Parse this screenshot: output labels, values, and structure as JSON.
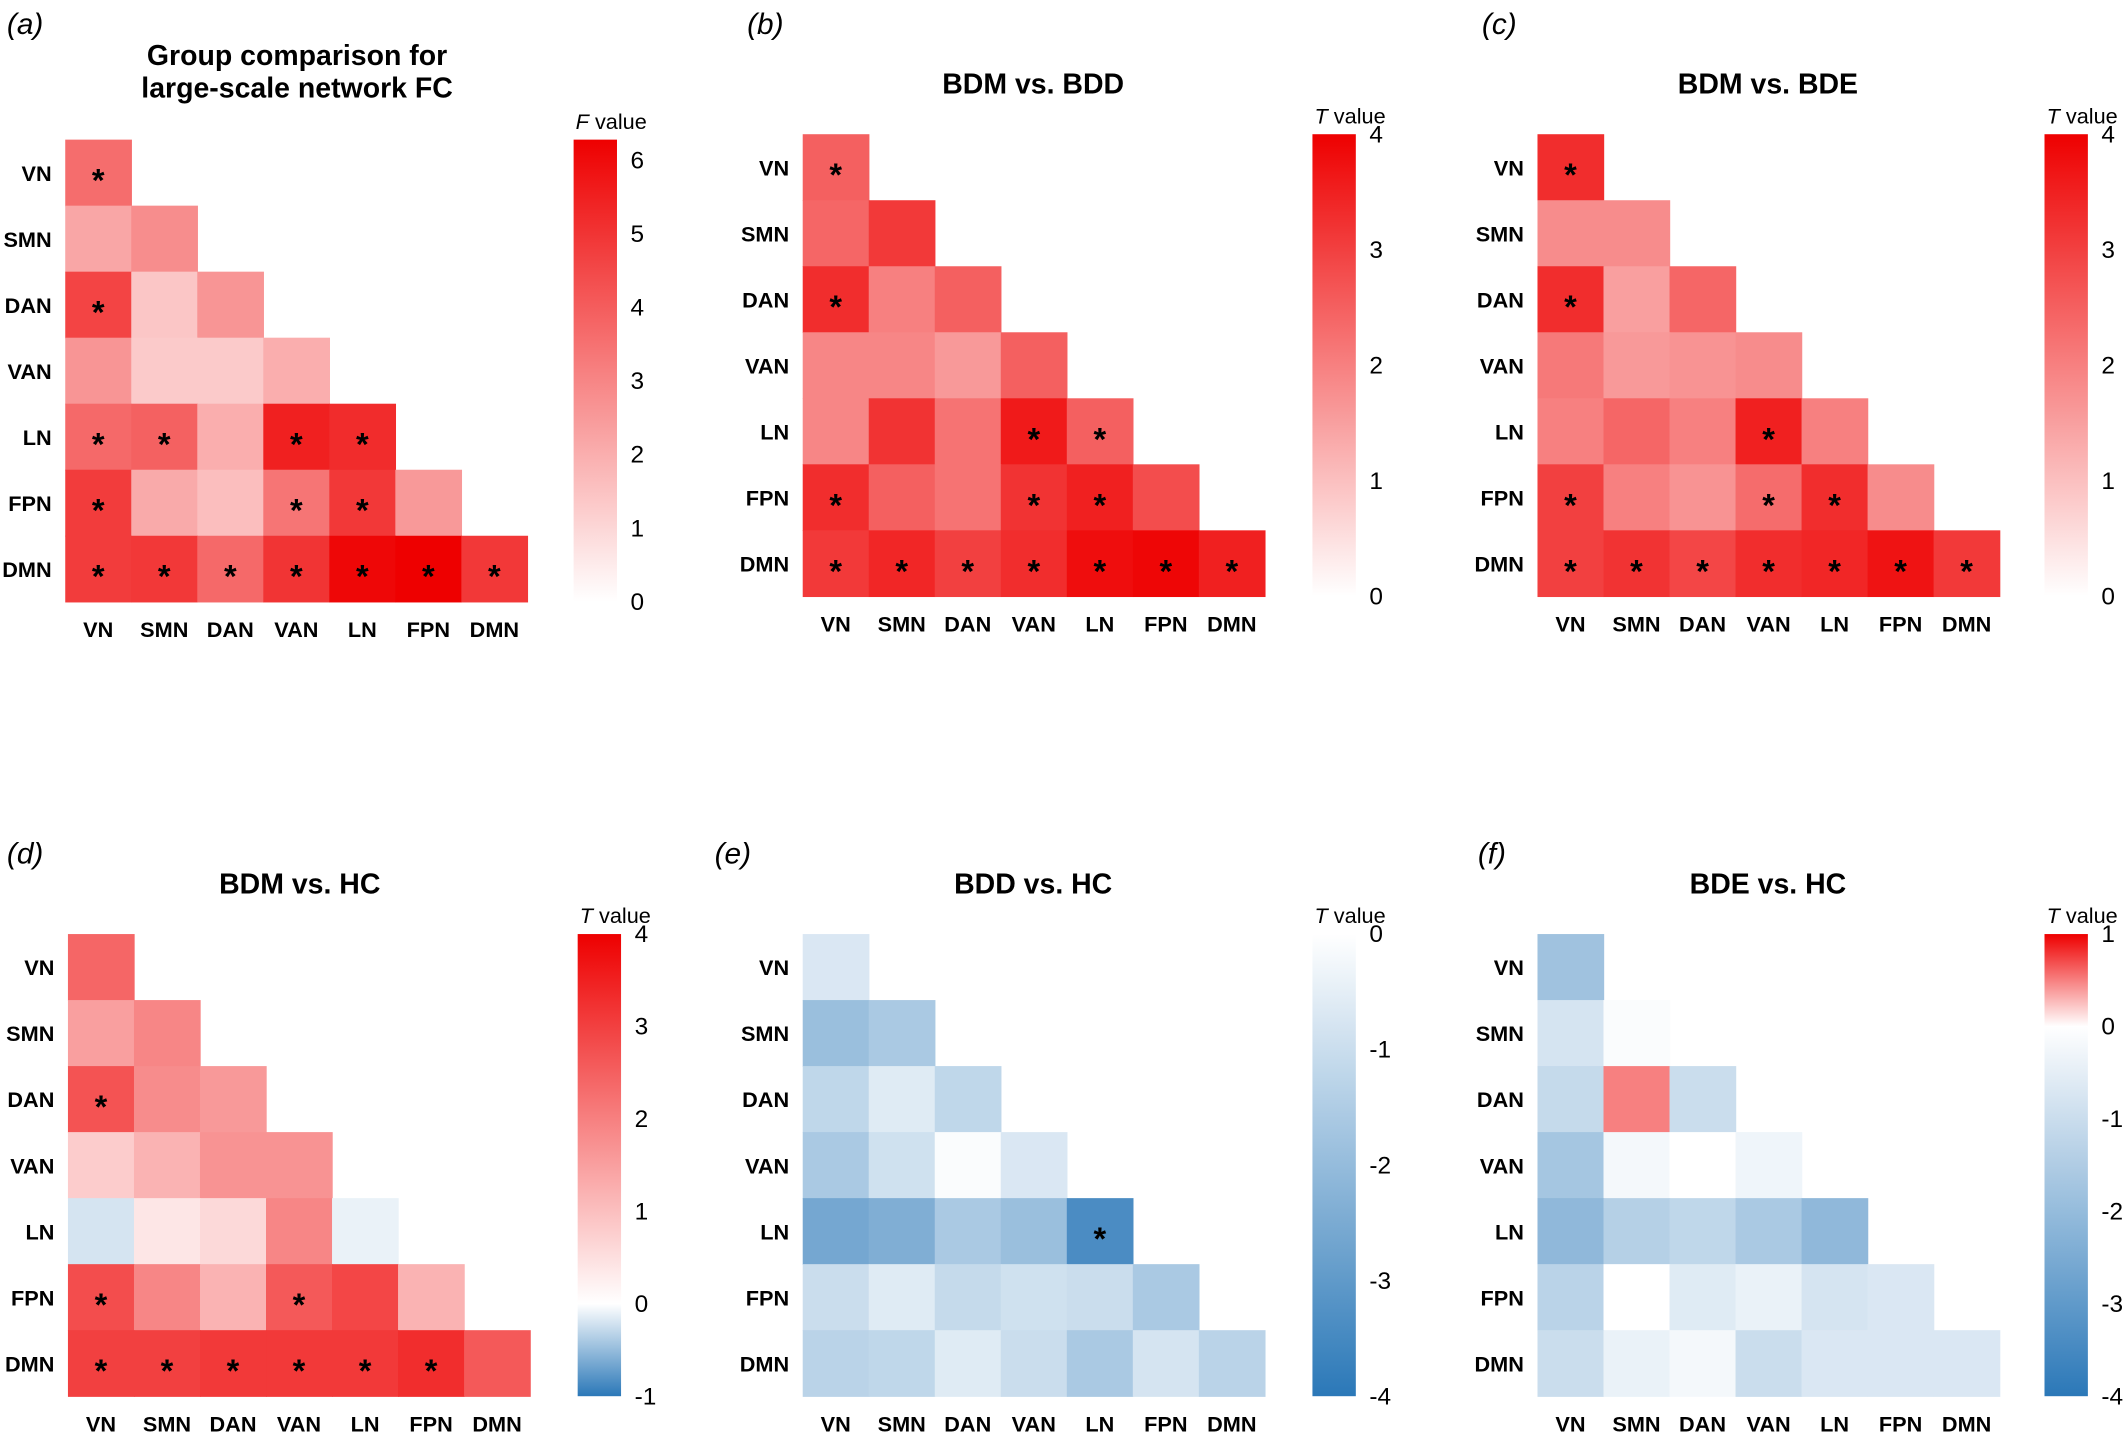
{
  "networks": [
    "VN",
    "SMN",
    "DAN",
    "VAN",
    "LN",
    "FPN",
    "DMN"
  ],
  "colors": {
    "red": "#ee0000",
    "blue": "#2b78b8",
    "mid": "#ffffff"
  },
  "chart_data": [
    {
      "type": "heatmap",
      "panel": "(a)",
      "title": [
        "Group comparison for",
        "large-scale network FC"
      ],
      "colorbar_label": "F value",
      "colorbar_label_italic": "F",
      "colorbar_label_rest": " value",
      "range": [
        0,
        6.28
      ],
      "ticks": [
        0,
        1,
        2,
        3,
        4,
        5,
        6
      ],
      "values": [
        [
          3.6
        ],
        [
          2.2,
          2.8
        ],
        [
          4.6,
          1.4,
          2.6
        ],
        [
          2.6,
          1.3,
          1.3,
          2.0
        ],
        [
          3.7,
          3.9,
          2.0,
          5.5,
          5.2
        ],
        [
          4.8,
          2.1,
          1.6,
          3.4,
          4.9,
          2.5
        ],
        [
          4.8,
          4.9,
          3.7,
          5.0,
          6.1,
          6.3,
          4.9
        ]
      ],
      "significant": [
        [
          1
        ],
        [
          0,
          0
        ],
        [
          1,
          0,
          0
        ],
        [
          0,
          0,
          0,
          0
        ],
        [
          1,
          1,
          0,
          1,
          1
        ],
        [
          1,
          0,
          0,
          1,
          1,
          0
        ],
        [
          1,
          1,
          1,
          1,
          1,
          1,
          1
        ]
      ]
    },
    {
      "type": "heatmap",
      "panel": "(b)",
      "title": [
        "BDM vs. BDD"
      ],
      "colorbar_label": "T value",
      "colorbar_label_italic": "T",
      "colorbar_label_rest": " value",
      "range": [
        0,
        4
      ],
      "ticks": [
        0,
        1,
        2,
        3,
        4
      ],
      "values": [
        [
          2.5
        ],
        [
          2.4,
          3.1
        ],
        [
          3.3,
          2.0,
          2.5
        ],
        [
          1.9,
          1.9,
          1.6,
          2.5
        ],
        [
          1.9,
          3.2,
          2.2,
          3.6,
          2.5
        ],
        [
          3.3,
          2.5,
          2.2,
          3.2,
          3.5,
          2.8
        ],
        [
          3.1,
          3.4,
          3.0,
          3.3,
          3.8,
          3.9,
          3.5
        ]
      ],
      "significant": [
        [
          1
        ],
        [
          0,
          0
        ],
        [
          1,
          0,
          0
        ],
        [
          0,
          0,
          0,
          0
        ],
        [
          0,
          0,
          0,
          1,
          1
        ],
        [
          1,
          0,
          0,
          1,
          1,
          0
        ],
        [
          1,
          1,
          1,
          1,
          1,
          1,
          1
        ]
      ]
    },
    {
      "type": "heatmap",
      "panel": "(c)",
      "title": [
        "BDM vs. BDE"
      ],
      "colorbar_label": "T value",
      "colorbar_label_italic": "T",
      "colorbar_label_rest": " value",
      "range": [
        0,
        4
      ],
      "ticks": [
        0,
        1,
        2,
        3,
        4
      ],
      "values": [
        [
          3.3
        ],
        [
          1.8,
          1.8
        ],
        [
          3.3,
          1.5,
          2.4
        ],
        [
          2.1,
          1.6,
          1.7,
          1.8
        ],
        [
          2.0,
          2.4,
          2.0,
          3.5,
          2.0
        ],
        [
          3.0,
          2.0,
          1.7,
          2.3,
          3.3,
          1.8
        ],
        [
          3.0,
          3.2,
          2.9,
          3.3,
          3.4,
          3.7,
          3.1
        ]
      ],
      "significant": [
        [
          1
        ],
        [
          0,
          0
        ],
        [
          1,
          0,
          0
        ],
        [
          0,
          0,
          0,
          0
        ],
        [
          0,
          0,
          0,
          1,
          0
        ],
        [
          1,
          0,
          0,
          1,
          1,
          0
        ],
        [
          1,
          1,
          1,
          1,
          1,
          1,
          1
        ]
      ]
    },
    {
      "type": "heatmap",
      "panel": "(d)",
      "title": [
        "BDM vs. HC"
      ],
      "colorbar_label": "T value",
      "colorbar_label_italic": "T",
      "colorbar_label_rest": " value",
      "range": [
        -1,
        4
      ],
      "ticks": [
        -1,
        0,
        1,
        2,
        3,
        4
      ],
      "values": [
        [
          2.4
        ],
        [
          1.5,
          1.9
        ],
        [
          2.7,
          1.8,
          1.6
        ],
        [
          0.8,
          1.2,
          1.7,
          1.7
        ],
        [
          -0.2,
          0.4,
          0.6,
          1.9,
          -0.1
        ],
        [
          2.8,
          1.9,
          1.2,
          2.6,
          2.9,
          1.2
        ],
        [
          3.0,
          3.0,
          3.1,
          3.1,
          3.1,
          3.3,
          2.6
        ]
      ],
      "significant": [
        [
          0
        ],
        [
          0,
          0
        ],
        [
          1,
          0,
          0
        ],
        [
          0,
          0,
          0,
          0
        ],
        [
          0,
          0,
          0,
          0,
          0
        ],
        [
          1,
          0,
          0,
          1,
          0,
          0
        ],
        [
          1,
          1,
          1,
          1,
          1,
          1,
          0
        ]
      ]
    },
    {
      "type": "heatmap",
      "panel": "(e)",
      "title": [
        "BDD vs. HC"
      ],
      "colorbar_label": "T value",
      "colorbar_label_italic": "T",
      "colorbar_label_rest": " value",
      "range": [
        -4,
        0
      ],
      "ticks": [
        -4,
        -3,
        -2,
        -1,
        0
      ],
      "values": [
        [
          -0.7
        ],
        [
          -1.9,
          -1.6
        ],
        [
          -1.2,
          -0.6,
          -1.2
        ],
        [
          -1.6,
          -0.9,
          -0.1,
          -0.7
        ],
        [
          -2.6,
          -2.4,
          -1.6,
          -1.9,
          -3.4
        ],
        [
          -1.0,
          -0.6,
          -1.1,
          -0.9,
          -1.0,
          -1.6
        ],
        [
          -1.3,
          -1.2,
          -0.6,
          -1.0,
          -1.6,
          -0.8,
          -1.3
        ]
      ],
      "significant": [
        [
          0
        ],
        [
          0,
          0
        ],
        [
          0,
          0,
          0
        ],
        [
          0,
          0,
          0,
          0
        ],
        [
          0,
          0,
          0,
          0,
          1
        ],
        [
          0,
          0,
          0,
          0,
          0,
          0
        ],
        [
          0,
          0,
          0,
          0,
          0,
          0,
          0
        ]
      ]
    },
    {
      "type": "heatmap",
      "panel": "(f)",
      "title": [
        "BDE vs. HC"
      ],
      "colorbar_label": "T value",
      "colorbar_label_italic": "T",
      "colorbar_label_rest": " value",
      "range": [
        -4,
        1
      ],
      "ticks": [
        -4,
        -3,
        -2,
        -1,
        0,
        1
      ],
      "values": [
        [
          -1.8
        ],
        [
          -0.8,
          -0.1
        ],
        [
          -1.1,
          0.5,
          -1.0
        ],
        [
          -1.7,
          -0.2,
          0.0,
          -0.3
        ],
        [
          -2.1,
          -1.4,
          -1.2,
          -1.6,
          -2.1
        ],
        [
          -1.3,
          0.0,
          -0.6,
          -0.4,
          -0.8,
          -0.7
        ],
        [
          -1.0,
          -0.4,
          -0.2,
          -1.0,
          -0.7,
          -0.7,
          -0.7
        ]
      ],
      "significant": [
        [
          0
        ],
        [
          0,
          0
        ],
        [
          0,
          0,
          0
        ],
        [
          0,
          0,
          0,
          0
        ],
        [
          0,
          0,
          0,
          0,
          0
        ],
        [
          0,
          0,
          0,
          0,
          0,
          0
        ],
        [
          0,
          0,
          0,
          0,
          0,
          0,
          0
        ]
      ]
    }
  ]
}
